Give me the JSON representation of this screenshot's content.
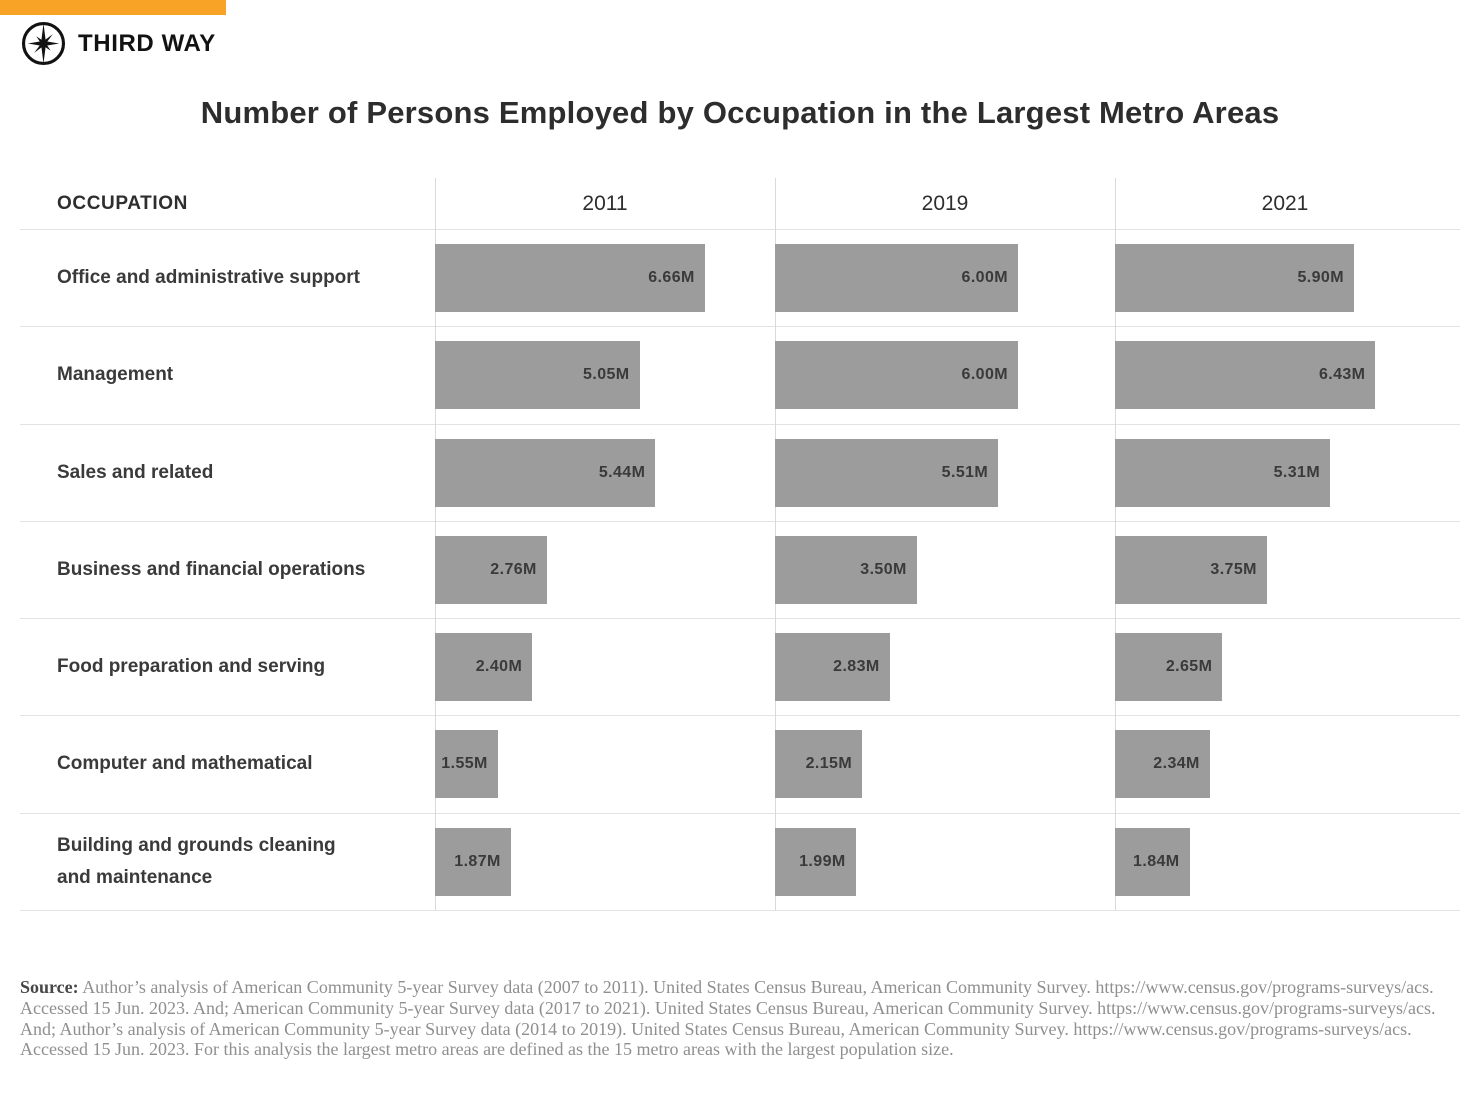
{
  "page": {
    "background": "#ffffff",
    "accent_color": "#F8A326"
  },
  "header": {
    "brand": "THIRD WAY",
    "logo_icon": "compass-star-icon"
  },
  "chart_data": {
    "type": "bar",
    "orientation": "horizontal",
    "title": "Number of Persons Employed by Occupation in the Largest Metro Areas",
    "occupation_header": "OCCUPATION",
    "columns": [
      "2011",
      "2019",
      "2021"
    ],
    "unit": "M = millions of persons employed",
    "xlim": [
      0,
      8.4
    ],
    "bar_color": "#9c9c9c",
    "grid": "row-separators-and-column-dividers",
    "rows": [
      {
        "occupation": "Office and administrative support",
        "values": [
          6.66,
          6.0,
          5.9
        ],
        "labels": [
          "6.66M",
          "6.00M",
          "5.90M"
        ]
      },
      {
        "occupation": "Management",
        "values": [
          5.05,
          6.0,
          6.43
        ],
        "labels": [
          "5.05M",
          "6.00M",
          "6.43M"
        ]
      },
      {
        "occupation": "Sales and related",
        "values": [
          5.44,
          5.51,
          5.31
        ],
        "labels": [
          "5.44M",
          "5.51M",
          "5.31M"
        ]
      },
      {
        "occupation": "Business and financial operations",
        "values": [
          2.76,
          3.5,
          3.75
        ],
        "labels": [
          "2.76M",
          "3.50M",
          "3.75M"
        ]
      },
      {
        "occupation": "Food preparation and serving",
        "values": [
          2.4,
          2.83,
          2.65
        ],
        "labels": [
          "2.40M",
          "2.83M",
          "2.65M"
        ]
      },
      {
        "occupation": "Computer and mathematical",
        "values": [
          1.55,
          2.15,
          2.34
        ],
        "labels": [
          "1.55M",
          "2.15M",
          "2.34M"
        ]
      },
      {
        "occupation": "Building and grounds cleaning and maintenance",
        "occupation_lines": [
          "Building and grounds cleaning",
          "and maintenance"
        ],
        "values": [
          1.87,
          1.99,
          1.84
        ],
        "labels": [
          "1.87M",
          "1.99M",
          "1.84M"
        ]
      }
    ]
  },
  "source": {
    "label": "Source:",
    "text": "Author’s analysis of American Community 5-year Survey data (2007 to 2011). United States Census Bureau, American Community Survey. https://www.census.gov/programs-surveys/acs. Accessed 15 Jun. 2023. And; American Community 5-year Survey data (2017 to 2021). United States Census Bureau, American Community Survey. https://www.census.gov/programs-surveys/acs. And; Author’s analysis of American Community 5-year Survey data (2014 to 2019). United States Census Bureau, American Community Survey.  https://www.census.gov/programs-surveys/acs. Accessed 15 Jun. 2023. For this analysis the largest metro areas are defined as the 15 metro areas with the largest population size."
  }
}
